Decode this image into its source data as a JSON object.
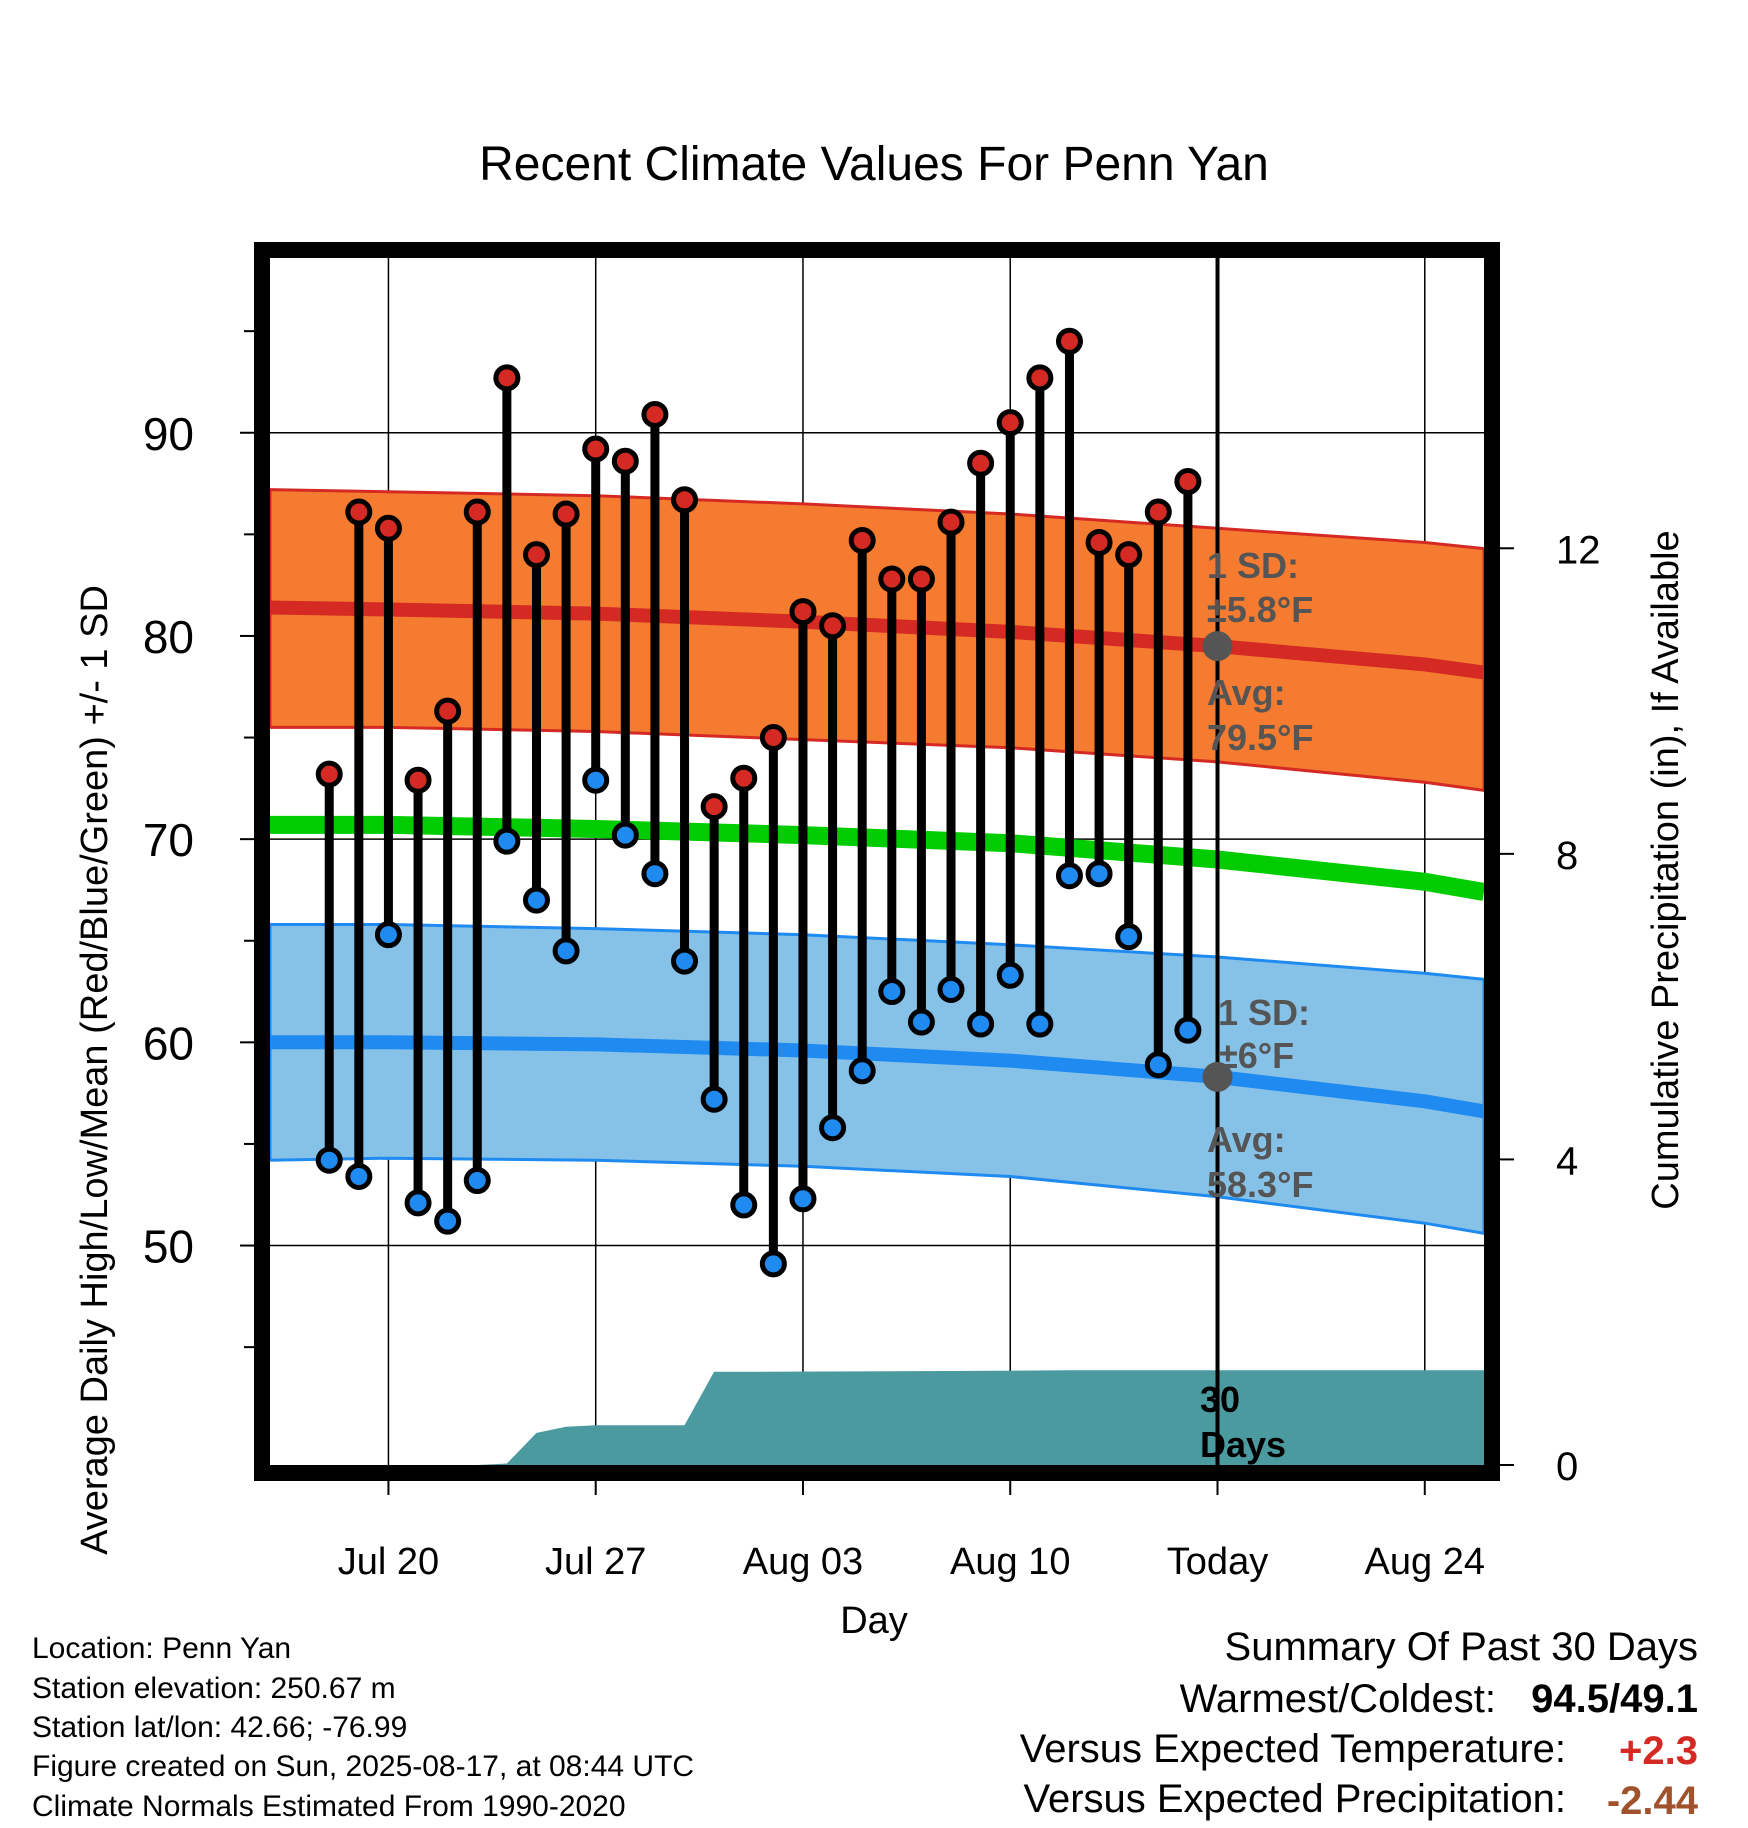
{
  "chart_data": {
    "type": "line",
    "title": "Recent Climate Values For Penn Yan",
    "xlabel": "Day",
    "ylabel_left": "Average Daily High/Low/Mean (Red/Blue/Green) +/- 1 SD",
    "ylabel_right": "Cumulative Precipitation (in), If Available",
    "x_range": [
      "Jul 16",
      "Aug 26"
    ],
    "x_ticks": [
      {
        "date": "Jul 20",
        "label": "Jul 20"
      },
      {
        "date": "Jul 27",
        "label": "Jul 27"
      },
      {
        "date": "Aug 03",
        "label": "Aug 03"
      },
      {
        "date": "Aug 10",
        "label": "Aug 10"
      },
      {
        "date": "Aug 17",
        "label": "Today"
      },
      {
        "date": "Aug 24",
        "label": "Aug 24"
      }
    ],
    "ylim_left": [
      39.2,
      98.6
    ],
    "y_ticks_left": [
      50,
      60,
      70,
      80,
      90
    ],
    "ylim_right": [
      0,
      15.8
    ],
    "y_ticks_right": [
      0,
      4,
      8,
      12
    ],
    "grid": true,
    "today": "Aug 17",
    "today_caption": [
      "30",
      "Days"
    ],
    "colors": {
      "high_band": "#f47b2f",
      "high_line": "#d42a23",
      "low_band": "#86c2e8",
      "low_line": "#1f8af0",
      "mean_line": "#00cc00",
      "precip": "#4a9aa0",
      "high_marker": "#d42a23",
      "low_marker": "#1f8af0",
      "annotation": "#555555",
      "anomaly_positive": "#d42a23",
      "anomaly_precip": "#a0522d"
    },
    "normals": {
      "dates": [
        "Jul 16",
        "Jul 20",
        "Jul 27",
        "Aug 03",
        "Aug 10",
        "Aug 17",
        "Aug 24",
        "Aug 26"
      ],
      "high_avg": [
        81.4,
        81.3,
        81.1,
        80.7,
        80.2,
        79.5,
        78.6,
        78.2
      ],
      "high_sd_upper": [
        87.2,
        87.1,
        86.9,
        86.5,
        86.0,
        85.3,
        84.6,
        84.3
      ],
      "high_sd_lower": [
        75.5,
        75.5,
        75.3,
        74.9,
        74.5,
        73.8,
        72.8,
        72.4
      ],
      "mean_avg": [
        70.7,
        70.7,
        70.5,
        70.2,
        69.8,
        69.0,
        67.9,
        67.4
      ],
      "low_avg": [
        60.0,
        60.0,
        59.9,
        59.6,
        59.1,
        58.3,
        57.1,
        56.6
      ],
      "low_sd_upper": [
        65.8,
        65.8,
        65.6,
        65.3,
        64.8,
        64.2,
        63.4,
        63.1
      ],
      "low_sd_lower": [
        54.2,
        54.3,
        54.2,
        53.9,
        53.4,
        52.4,
        51.1,
        50.6
      ]
    },
    "series": [
      {
        "name": "High",
        "dates": [
          "Jul 18",
          "Jul 19",
          "Jul 20",
          "Jul 21",
          "Jul 22",
          "Jul 23",
          "Jul 24",
          "Jul 25",
          "Jul 26",
          "Jul 27",
          "Jul 28",
          "Jul 29",
          "Jul 30",
          "Jul 31",
          "Aug 01",
          "Aug 02",
          "Aug 03",
          "Aug 04",
          "Aug 05",
          "Aug 06",
          "Aug 07",
          "Aug 08",
          "Aug 09",
          "Aug 10",
          "Aug 11",
          "Aug 12",
          "Aug 13",
          "Aug 14",
          "Aug 15",
          "Aug 16"
        ],
        "values": [
          73.2,
          86.1,
          85.3,
          72.9,
          76.3,
          86.1,
          92.7,
          84.0,
          86.0,
          89.2,
          88.6,
          90.9,
          86.7,
          71.6,
          73.0,
          75.0,
          81.2,
          80.5,
          84.7,
          82.8,
          82.8,
          85.6,
          88.5,
          90.5,
          92.7,
          94.5,
          84.6,
          84.0,
          86.1,
          87.6
        ]
      },
      {
        "name": "Low",
        "dates": [
          "Jul 18",
          "Jul 19",
          "Jul 20",
          "Jul 21",
          "Jul 22",
          "Jul 23",
          "Jul 24",
          "Jul 25",
          "Jul 26",
          "Jul 27",
          "Jul 28",
          "Jul 29",
          "Jul 30",
          "Jul 31",
          "Aug 01",
          "Aug 02",
          "Aug 03",
          "Aug 04",
          "Aug 05",
          "Aug 06",
          "Aug 07",
          "Aug 08",
          "Aug 09",
          "Aug 10",
          "Aug 11",
          "Aug 12",
          "Aug 13",
          "Aug 14",
          "Aug 15",
          "Aug 16"
        ],
        "values": [
          54.2,
          53.4,
          65.3,
          52.1,
          51.2,
          53.2,
          69.9,
          67.0,
          64.5,
          72.9,
          70.2,
          68.3,
          64.0,
          57.2,
          52.0,
          49.1,
          52.3,
          55.8,
          58.6,
          62.5,
          61.0,
          62.6,
          60.9,
          63.3,
          60.9,
          68.2,
          68.3,
          65.2,
          58.9,
          60.6
        ]
      },
      {
        "name": "Cumulative Precipitation",
        "dates": [
          "Jul 16",
          "Jul 23",
          "Jul 24",
          "Jul 25",
          "Jul 26",
          "Jul 27",
          "Jul 28",
          "Jul 29",
          "Jul 30",
          "Jul 31",
          "Aug 01",
          "Aug 08",
          "Aug 12",
          "Aug 17",
          "Aug 26"
        ],
        "values": [
          0,
          0,
          0.02,
          0.42,
          0.5,
          0.52,
          0.52,
          0.52,
          0.52,
          1.22,
          1.22,
          1.23,
          1.24,
          1.24,
          1.24
        ]
      }
    ],
    "annotations": {
      "high_sd_label": "1 SD:",
      "high_sd_value": "±5.8°F",
      "high_avg_label": "Avg:",
      "high_avg_value": "79.5°F",
      "low_sd_label": "1 SD:",
      "low_sd_value": "±6°F",
      "low_avg_label": "Avg:",
      "low_avg_value": "58.3°F"
    }
  },
  "station_info": {
    "location": "Location: Penn Yan",
    "elevation": "Station elevation: 250.67 m",
    "latlon": "Station lat/lon: 42.66; -76.99",
    "created": "Figure created on Sun, 2025-08-17, at 08:44 UTC",
    "normals": "Climate Normals Estimated From 1990-2020"
  },
  "summary": {
    "heading": "Summary Of Past 30 Days",
    "warm_cold_label": "Warmest/Coldest:",
    "warm_cold_value": "94.5/49.1",
    "temp_label": "Versus Expected Temperature:",
    "temp_value": "+2.3",
    "precip_label": "Versus Expected Precipitation:",
    "precip_value": "-2.44"
  }
}
